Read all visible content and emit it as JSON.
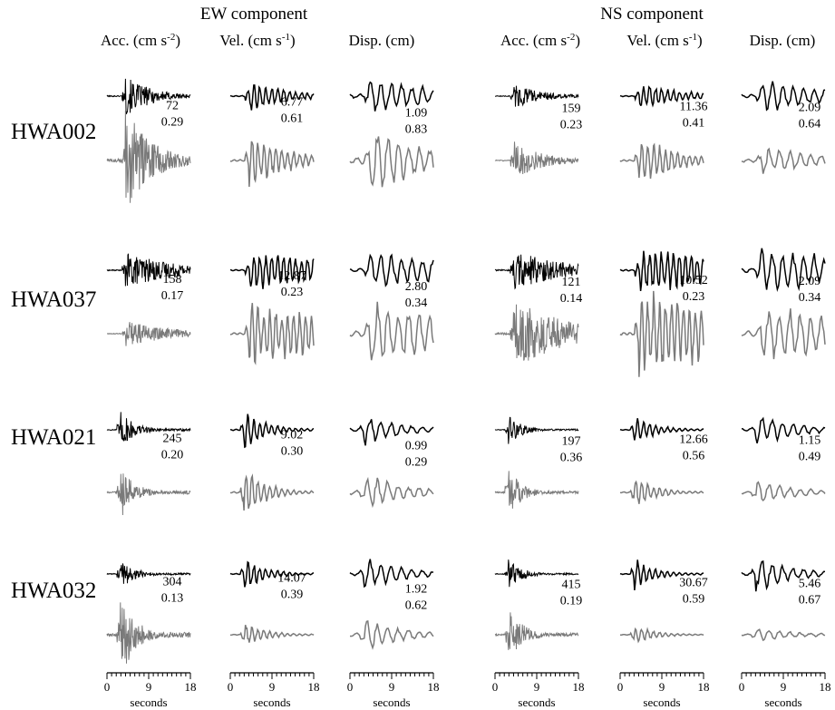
{
  "components": [
    {
      "title": "EW component",
      "columns": [
        {
          "header": "Acc. (cm s",
          "exp": "-2",
          "tail": ")"
        },
        {
          "header": "Vel. (cm s",
          "exp": "-1",
          "tail": ")"
        },
        {
          "header": "Disp. (cm)",
          "exp": "",
          "tail": ""
        }
      ]
    },
    {
      "title": "NS component",
      "columns": [
        {
          "header": "Acc. (cm s",
          "exp": "-2",
          "tail": ")"
        },
        {
          "header": "Vel. (cm s",
          "exp": "-1",
          "tail": ")"
        },
        {
          "header": "Disp. (cm)",
          "exp": "",
          "tail": ""
        }
      ]
    }
  ],
  "stations": [
    {
      "name": "HWA002",
      "values": [
        [
          "72",
          "0.29"
        ],
        [
          "6.77",
          "0.61"
        ],
        [
          "1.09",
          "0.83"
        ],
        [
          "159",
          "0.23"
        ],
        [
          "11.36",
          "0.41"
        ],
        [
          "2.09",
          "0.64"
        ]
      ]
    },
    {
      "name": "HWA037",
      "values": [
        [
          "158",
          "0.17"
        ],
        [
          "12.87",
          "0.23"
        ],
        [
          "2.80",
          "0.34"
        ],
        [
          "121",
          "0.14"
        ],
        [
          "10.52",
          "0.23"
        ],
        [
          "2.09",
          "0.34"
        ]
      ]
    },
    {
      "name": "HWA021",
      "values": [
        [
          "245",
          "0.20"
        ],
        [
          "9.02",
          "0.30"
        ],
        [
          "0.99",
          "0.29"
        ],
        [
          "197",
          "0.36"
        ],
        [
          "12.66",
          "0.56"
        ],
        [
          "1.15",
          "0.49"
        ]
      ]
    },
    {
      "name": "HWA032",
      "values": [
        [
          "304",
          "0.13"
        ],
        [
          "14.07",
          "0.39"
        ],
        [
          "1.92",
          "0.62"
        ],
        [
          "415",
          "0.19"
        ],
        [
          "30.67",
          "0.59"
        ],
        [
          "5.46",
          "0.67"
        ]
      ]
    }
  ],
  "axis": {
    "xlabel": "seconds",
    "ticks": [
      "0",
      "9",
      "18"
    ],
    "range": [
      0,
      18
    ],
    "minor_step": 1
  },
  "trace_colors": {
    "top": "#000000",
    "bottom": "#7a7a7a"
  }
}
